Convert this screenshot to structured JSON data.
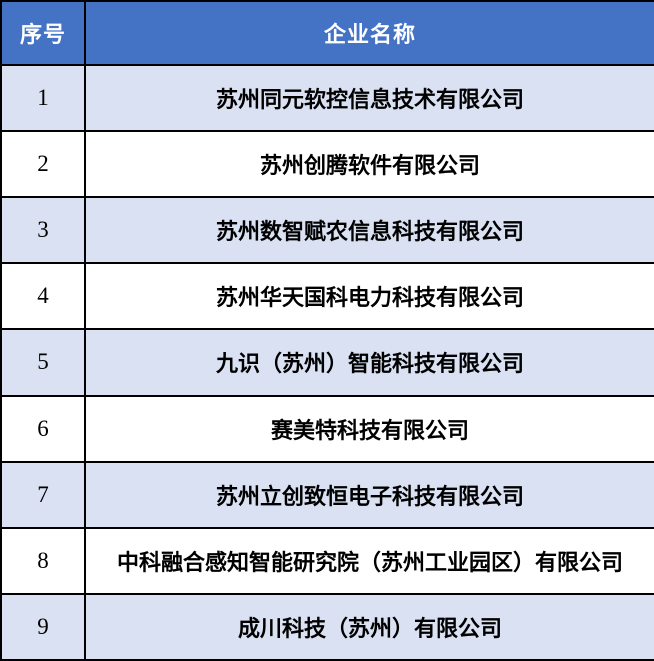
{
  "colors": {
    "header_bg": "#4472C4",
    "header_text": "#FFFFFF",
    "alt_row_bg": "#D9E1F2",
    "plain_row_bg": "#FFFFFF",
    "border": "#000000",
    "body_text": "#000000"
  },
  "table": {
    "headers": [
      "序号",
      "企业名称"
    ],
    "rows": [
      {
        "no": "1",
        "name": "苏州同元软控信息技术有限公司"
      },
      {
        "no": "2",
        "name": "苏州创腾软件有限公司"
      },
      {
        "no": "3",
        "name": "苏州数智赋农信息科技有限公司"
      },
      {
        "no": "4",
        "name": "苏州华天国科电力科技有限公司"
      },
      {
        "no": "5",
        "name": "九识（苏州）智能科技有限公司"
      },
      {
        "no": "6",
        "name": "赛美特科技有限公司"
      },
      {
        "no": "7",
        "name": "苏州立创致恒电子科技有限公司"
      },
      {
        "no": "8",
        "name": "中科融合感知智能研究院（苏州工业园区）有限公司"
      },
      {
        "no": "9",
        "name": "成川科技（苏州）有限公司"
      }
    ]
  }
}
